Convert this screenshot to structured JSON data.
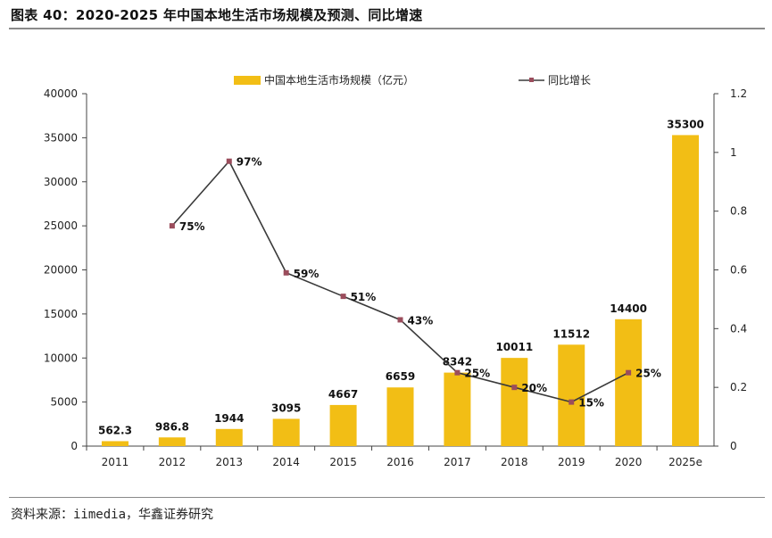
{
  "title": "图表 40：2020-2025 年中国本地生活市场规模及预测、同比增速",
  "source": "资料来源：iimedia，华鑫证券研究",
  "chart_data": {
    "type": "bar+line",
    "categories": [
      "2011",
      "2012",
      "2013",
      "2014",
      "2015",
      "2016",
      "2017",
      "2018",
      "2019",
      "2020",
      "2025e"
    ],
    "series": [
      {
        "name": "中国本地生活市场规模（亿元）",
        "type": "bar",
        "axis": "left",
        "values": [
          562.3,
          986.8,
          1944,
          3095,
          4667,
          6659,
          8342,
          10011,
          11512,
          14400,
          35300
        ],
        "labels": [
          "562.3",
          "986.8",
          "1944",
          "3095",
          "4667",
          "6659",
          "8342",
          "10011",
          "11512",
          "14400",
          "35300"
        ]
      },
      {
        "name": "同比增长",
        "type": "line",
        "axis": "right",
        "values": [
          null,
          0.75,
          0.97,
          0.59,
          0.51,
          0.43,
          0.25,
          0.2,
          0.15,
          0.25,
          null
        ],
        "labels": [
          "",
          "75%",
          "97%",
          "59%",
          "51%",
          "43%",
          "25%",
          "20%",
          "15%",
          "25%",
          ""
        ]
      }
    ],
    "y_left": {
      "min": 0,
      "max": 40000,
      "ticks": [
        "0",
        "5000",
        "10000",
        "15000",
        "20000",
        "25000",
        "30000",
        "35000",
        "40000"
      ]
    },
    "y_right": {
      "min": 0,
      "max": 1.2,
      "ticks": [
        "0",
        "0.2",
        "0.4",
        "0.6",
        "0.8",
        "1",
        "1.2"
      ]
    },
    "legend_position": "top-center",
    "grid": false,
    "colors": {
      "bar": "#F2BE15",
      "line": "#3a3a3a",
      "marker": "#9b4d5c"
    }
  }
}
